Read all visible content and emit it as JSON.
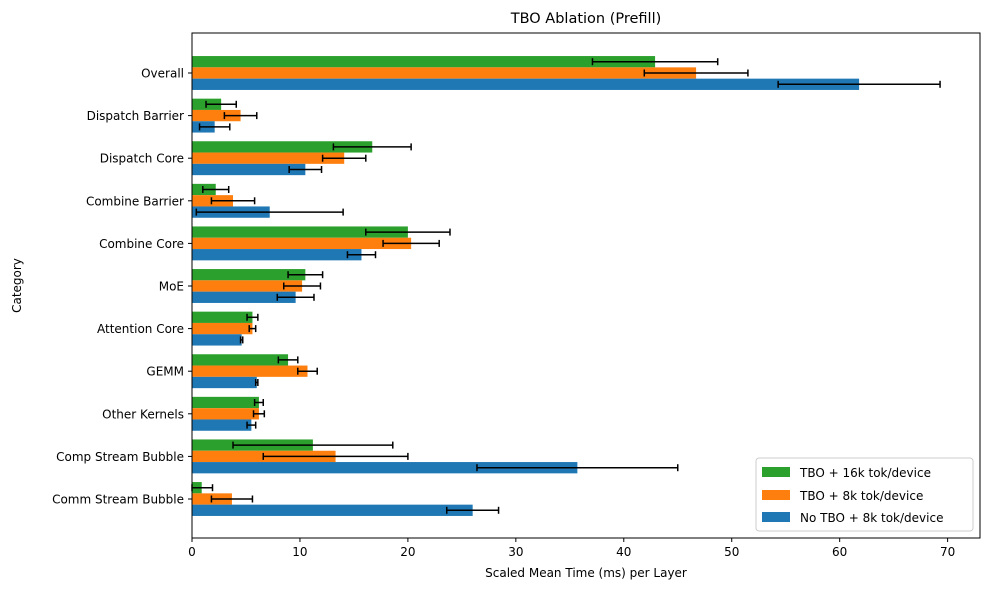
{
  "chart_data": {
    "type": "bar",
    "orientation": "horizontal",
    "title": "TBO Ablation (Prefill)",
    "xlabel": "Scaled Mean Time (ms) per Layer",
    "ylabel": "Category",
    "xlim": [
      0,
      73
    ],
    "xticks": [
      0,
      10,
      20,
      30,
      40,
      50,
      60,
      70
    ],
    "grid": false,
    "legend_position": "lower-right",
    "categories": [
      "Overall",
      "Dispatch Barrier",
      "Dispatch Core",
      "Combine Barrier",
      "Combine Core",
      "MoE",
      "Attention Core",
      "GEMM",
      "Other Kernels",
      "Comp Stream Bubble",
      "Comm Stream Bubble"
    ],
    "series": [
      {
        "name": "TBO + 16k tok/device",
        "color": "#2ca02c",
        "values": [
          42.9,
          2.7,
          16.7,
          2.2,
          20.0,
          10.5,
          5.6,
          8.9,
          6.2,
          11.2,
          0.9
        ],
        "errors": [
          5.8,
          1.4,
          3.6,
          1.2,
          3.9,
          1.6,
          0.5,
          0.9,
          0.4,
          7.4,
          1.0
        ]
      },
      {
        "name": "TBO + 8k tok/device",
        "color": "#ff7f0e",
        "values": [
          46.7,
          4.5,
          14.1,
          3.8,
          20.3,
          10.2,
          5.6,
          10.7,
          6.2,
          13.3,
          3.7
        ],
        "errors": [
          4.8,
          1.5,
          2.0,
          2.0,
          2.6,
          1.7,
          0.3,
          0.9,
          0.5,
          6.7,
          1.9
        ]
      },
      {
        "name": "No TBO + 8k tok/device",
        "color": "#1f77b4",
        "values": [
          61.8,
          2.1,
          10.5,
          7.2,
          15.7,
          9.6,
          4.6,
          6.0,
          5.5,
          35.7,
          26.0
        ],
        "errors": [
          7.5,
          1.4,
          1.5,
          6.8,
          1.3,
          1.7,
          0.1,
          0.1,
          0.4,
          9.3,
          2.4
        ]
      }
    ]
  }
}
